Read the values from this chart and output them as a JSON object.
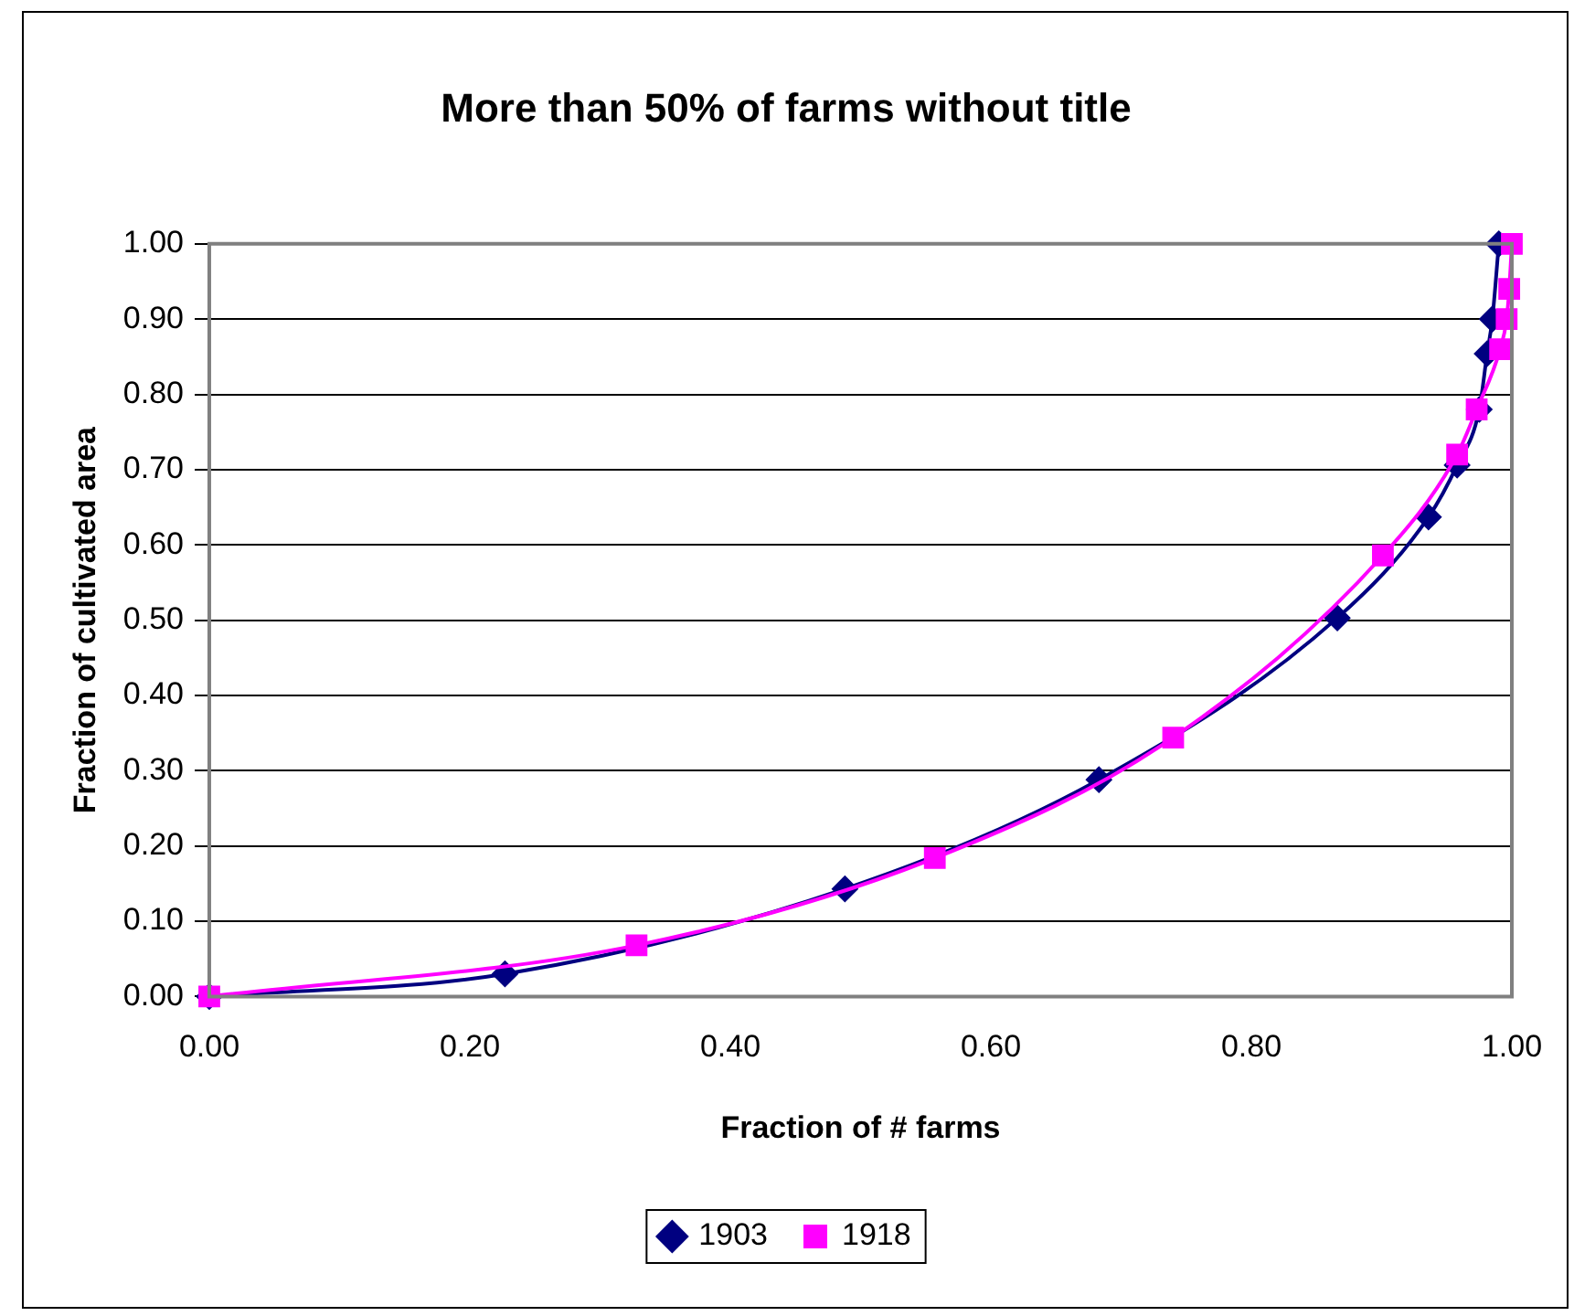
{
  "chart_data": {
    "type": "line",
    "title": "More than 50% of farms without title",
    "xlabel": "Fraction of # farms",
    "ylabel": "Fraction of cultivated area",
    "series": [
      {
        "name": "1903",
        "color": "#000080",
        "marker": "diamond",
        "x": [
          0,
          0.227,
          0.488,
          0.683,
          0.866,
          0.936,
          0.958,
          0.975,
          0.981,
          0.985,
          0.99
        ],
        "values": [
          0,
          0.03,
          0.143,
          0.288,
          0.503,
          0.637,
          0.706,
          0.78,
          0.854,
          0.9,
          1
        ]
      },
      {
        "name": "1918",
        "color": "#ff00ff",
        "marker": "square",
        "x": [
          0,
          0.328,
          0.557,
          0.74,
          0.901,
          0.958,
          0.973,
          0.991,
          0.996,
          0.998,
          1
        ],
        "values": [
          0,
          0.068,
          0.184,
          0.344,
          0.586,
          0.72,
          0.78,
          0.86,
          0.9,
          0.94,
          1
        ]
      }
    ],
    "xlim": [
      0,
      1
    ],
    "xticks": [
      {
        "value": 0,
        "label": "0.00"
      },
      {
        "value": 0.2,
        "label": "0.20"
      },
      {
        "value": 0.4,
        "label": "0.40"
      },
      {
        "value": 0.6,
        "label": "0.60"
      },
      {
        "value": 0.8,
        "label": "0.80"
      },
      {
        "value": 1,
        "label": "1.00"
      }
    ],
    "ylim": [
      0,
      1
    ],
    "yticks": [
      {
        "value": 0,
        "label": "0.00"
      },
      {
        "value": 0.1,
        "label": "0.10"
      },
      {
        "value": 0.2,
        "label": "0.20"
      },
      {
        "value": 0.3,
        "label": "0.30"
      },
      {
        "value": 0.4,
        "label": "0.40"
      },
      {
        "value": 0.5,
        "label": "0.50"
      },
      {
        "value": 0.6,
        "label": "0.60"
      },
      {
        "value": 0.7,
        "label": "0.70"
      },
      {
        "value": 0.8,
        "label": "0.80"
      },
      {
        "value": 0.9,
        "label": "0.90"
      },
      {
        "value": 1,
        "label": "1.00"
      }
    ],
    "grid": "y",
    "legend": "bottom",
    "line_style": "solid"
  }
}
